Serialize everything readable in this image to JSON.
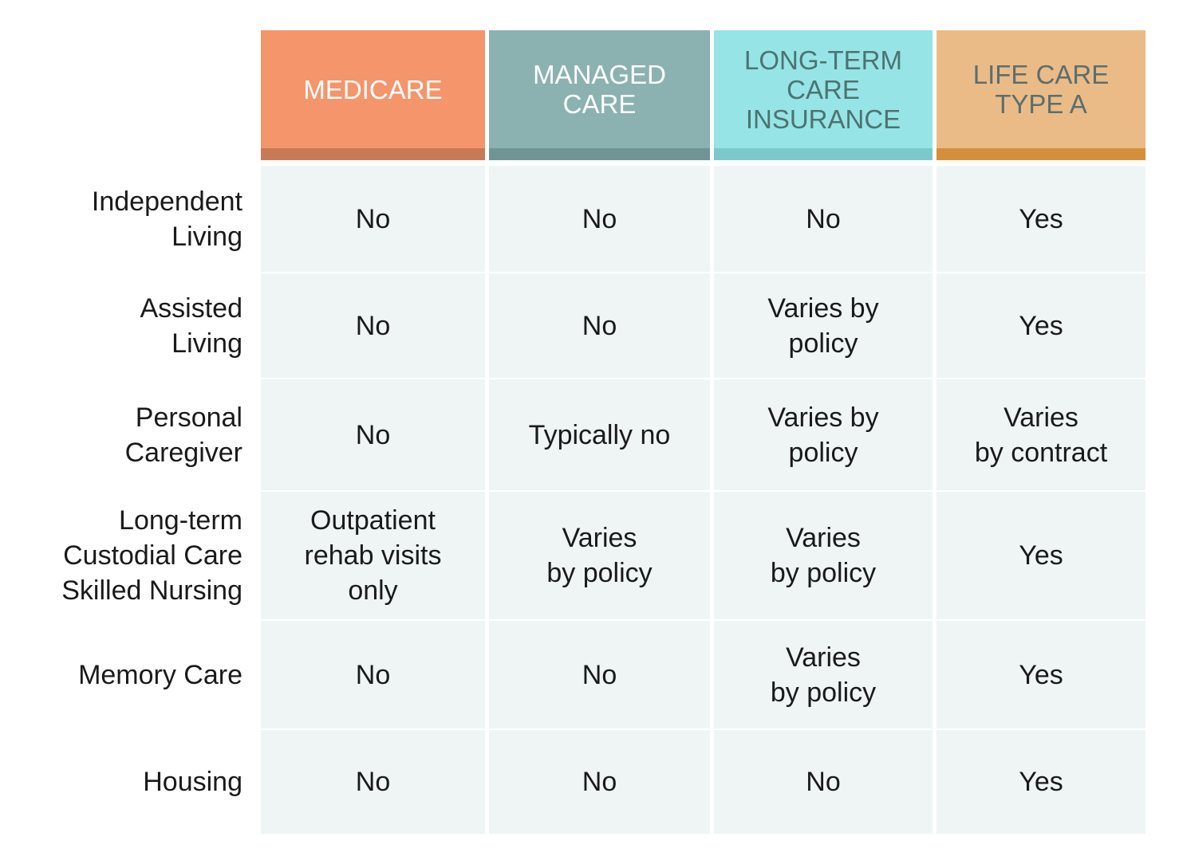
{
  "chart_data": {
    "type": "table",
    "columns": [
      {
        "label": "MEDICARE",
        "color": "#f4956b",
        "bar_color": "#c87a57",
        "text_color": "#ffffff"
      },
      {
        "label": "MANAGED\nCARE",
        "color": "#8bb2b1",
        "bar_color": "#6e9594",
        "text_color": "#ffffff"
      },
      {
        "label": "LONG-TERM\nCARE\nINSURANCE",
        "color": "#97e4e6",
        "bar_color": "#7cc9cb",
        "text_color": "#4b7372"
      },
      {
        "label": "LIFE CARE\nTYPE A",
        "color": "#ebbb87",
        "bar_color": "#d48f3a",
        "text_color": "#5a6f6e"
      }
    ],
    "rows": [
      {
        "label": "Independent\nLiving",
        "values": [
          "No",
          "No",
          "No",
          "Yes"
        ]
      },
      {
        "label": "Assisted\nLiving",
        "values": [
          "No",
          "No",
          "Varies by\npolicy",
          "Yes"
        ]
      },
      {
        "label": "Personal\nCaregiver",
        "values": [
          "No",
          "Typically no",
          "Varies by\npolicy",
          "Varies\nby contract"
        ]
      },
      {
        "label": "Long-term\nCustodial Care\nSkilled Nursing",
        "values": [
          "Outpatient\nrehab visits\nonly",
          "Varies\nby policy",
          "Varies\nby policy",
          "Yes"
        ]
      },
      {
        "label": "Memory Care",
        "values": [
          "No",
          "No",
          "Varies\nby policy",
          "Yes"
        ]
      },
      {
        "label": "Housing",
        "values": [
          "No",
          "No",
          "No",
          "Yes"
        ]
      }
    ],
    "cell_color": "#eff5f5"
  }
}
